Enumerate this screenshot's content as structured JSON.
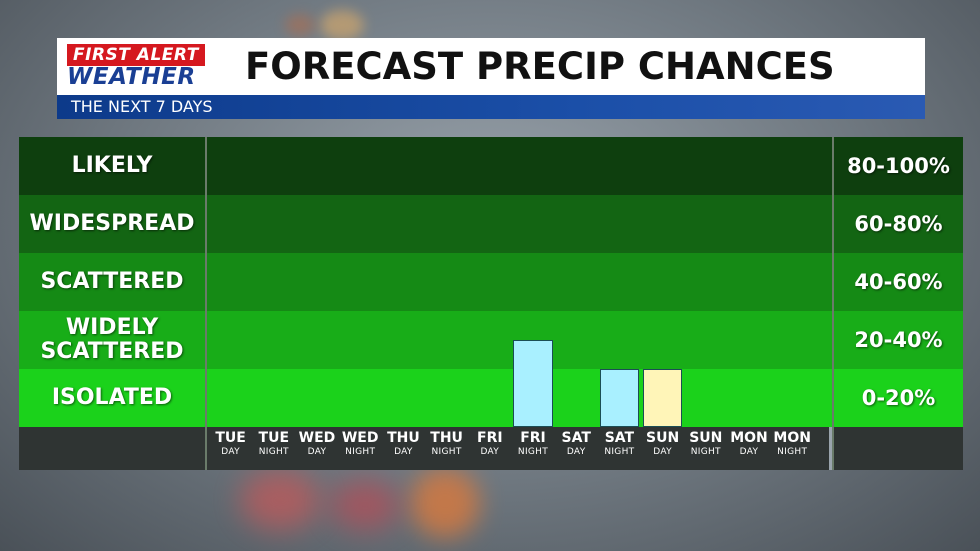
{
  "header": {
    "logo_line1": "FIRST ALERT",
    "logo_line2": "WEATHER",
    "title": "FORECAST PRECIP CHANCES",
    "subtitle": "THE NEXT 7 DAYS"
  },
  "colors": {
    "band_likely": "#0e3f0e",
    "band_widespread": "#136513",
    "band_scattered": "#158a15",
    "band_widely_scattered": "#18ad18",
    "band_isolated": "#1bd21b",
    "bar_rain": "#a9f0ff",
    "bar_storm": "#fff5b8"
  },
  "chart_data": {
    "type": "bar",
    "categories": [
      {
        "day": "TUE",
        "period": "DAY"
      },
      {
        "day": "TUE",
        "period": "NIGHT"
      },
      {
        "day": "WED",
        "period": "DAY"
      },
      {
        "day": "WED",
        "period": "NIGHT"
      },
      {
        "day": "THU",
        "period": "DAY"
      },
      {
        "day": "THU",
        "period": "NIGHT"
      },
      {
        "day": "FRI",
        "period": "DAY"
      },
      {
        "day": "FRI",
        "period": "NIGHT"
      },
      {
        "day": "SAT",
        "period": "DAY"
      },
      {
        "day": "SAT",
        "period": "NIGHT"
      },
      {
        "day": "SUN",
        "period": "DAY"
      },
      {
        "day": "SUN",
        "period": "NIGHT"
      },
      {
        "day": "MON",
        "period": "DAY"
      },
      {
        "day": "MON",
        "period": "NIGHT"
      }
    ],
    "values": [
      0,
      0,
      0,
      0,
      0,
      0,
      0,
      30,
      0,
      20,
      20,
      0,
      0,
      0
    ],
    "bar_colors": [
      null,
      null,
      null,
      null,
      null,
      null,
      null,
      "#a9f0ff",
      null,
      "#a9f0ff",
      "#fff5b8",
      null,
      null,
      null
    ],
    "ylim": [
      0,
      100
    ],
    "bands": [
      {
        "label_lines": [
          "LIKELY"
        ],
        "range": "80-100%",
        "min": 80,
        "max": 100
      },
      {
        "label_lines": [
          "WIDESPREAD"
        ],
        "range": "60-80%",
        "min": 60,
        "max": 80
      },
      {
        "label_lines": [
          "SCATTERED"
        ],
        "range": "40-60%",
        "min": 40,
        "max": 60
      },
      {
        "label_lines": [
          "WIDELY",
          "SCATTERED"
        ],
        "range": "20-40%",
        "min": 20,
        "max": 40
      },
      {
        "label_lines": [
          "ISOLATED"
        ],
        "range": "0-20%",
        "min": 0,
        "max": 20
      }
    ],
    "grid": false,
    "legend": "none"
  }
}
